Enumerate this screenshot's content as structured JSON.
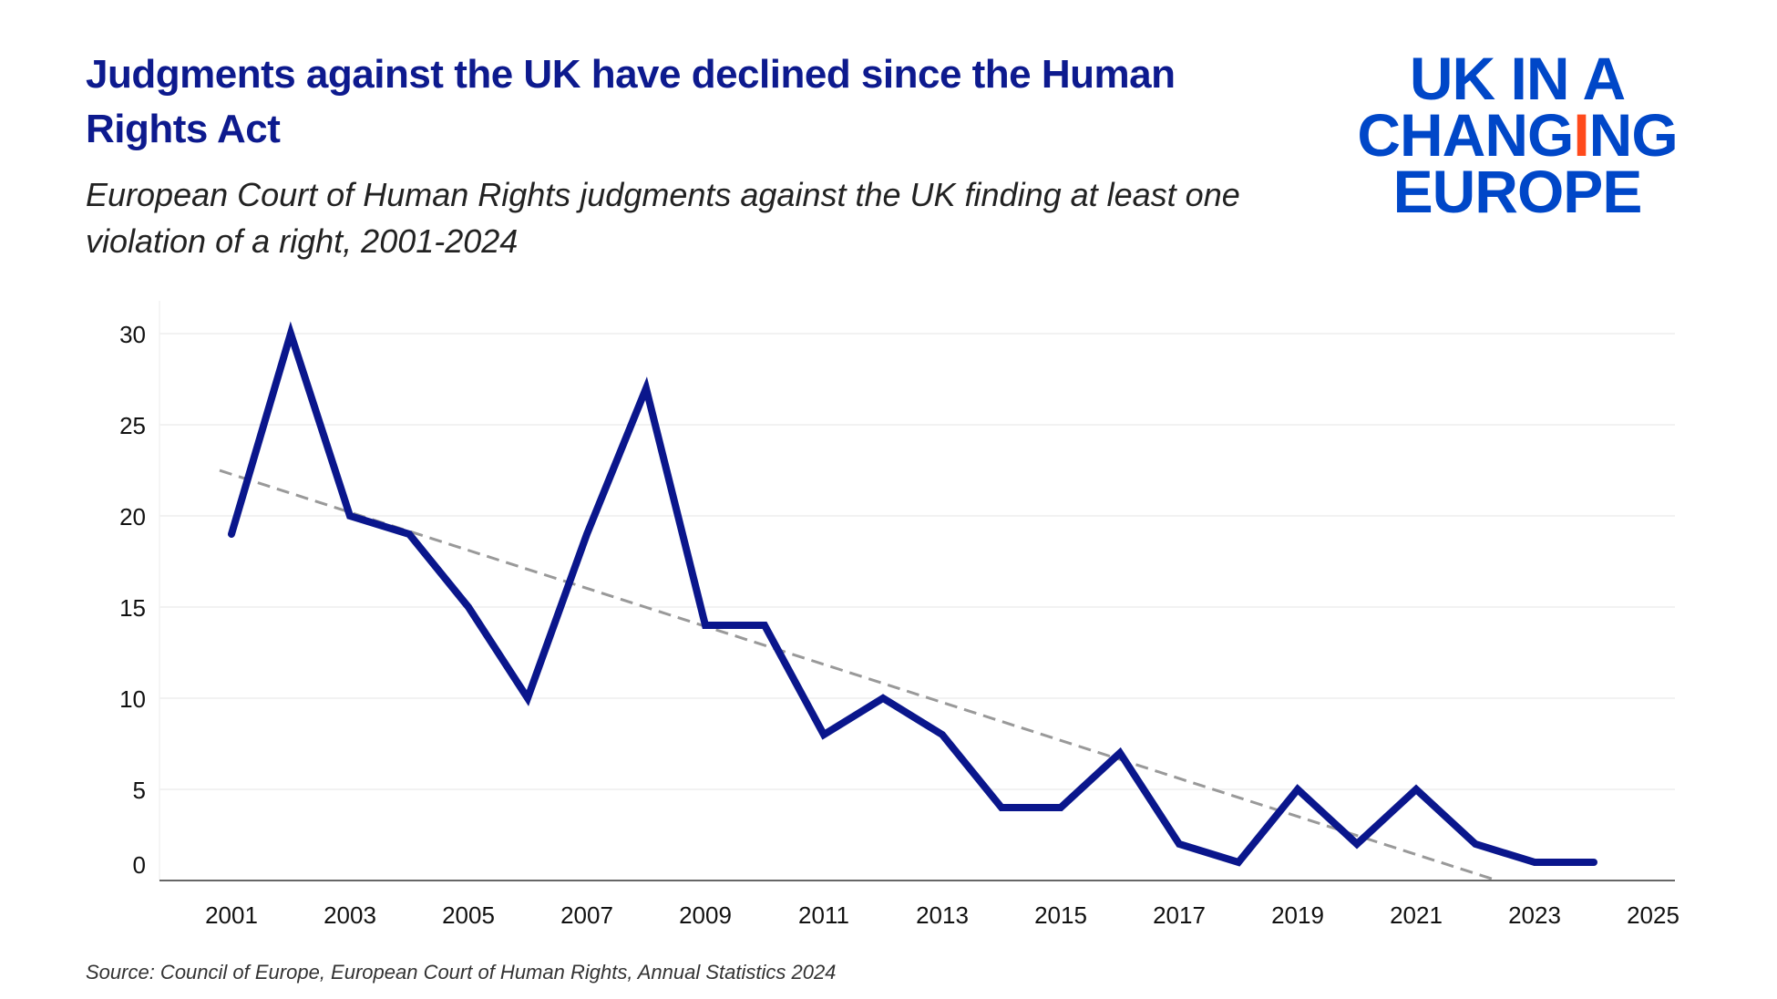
{
  "title": "Judgments against the UK have declined since the Human Rights Act",
  "subtitle": "European Court of Human Rights judgments against the UK finding at least one violation of a right, 2001-2024",
  "source": "Source: Council of Europe, European Court of Human Rights, Annual Statistics 2024",
  "logo": {
    "line1": "UK IN A",
    "line2a": "CHANG",
    "line2b": "I",
    "line2c": "NG",
    "line3": "EUROPE",
    "color": "#0047c8",
    "accent": "#ff4a1c"
  },
  "chart_data": {
    "type": "line",
    "title": "Judgments against the UK have declined since the Human Rights Act",
    "subtitle": "European Court of Human Rights judgments against the UK finding at least one violation of a right, 2001-2024",
    "x": [
      2001,
      2002,
      2003,
      2004,
      2005,
      2006,
      2007,
      2008,
      2009,
      2010,
      2011,
      2012,
      2013,
      2014,
      2015,
      2016,
      2017,
      2018,
      2019,
      2020,
      2021,
      2022,
      2023,
      2024
    ],
    "series": [
      {
        "values": [
          19,
          30,
          20,
          19,
          15,
          10,
          19,
          27,
          14,
          14,
          8,
          10,
          8,
          4,
          4,
          7,
          2,
          1,
          5,
          2,
          5,
          2,
          1,
          1
        ],
        "color": "#0a168c"
      }
    ],
    "trendline": {
      "style": "dashed",
      "color": "#999999",
      "type": "linear"
    },
    "xticks": [
      "2001",
      "2003",
      "2005",
      "2007",
      "2009",
      "2011",
      "2013",
      "2015",
      "2017",
      "2019",
      "2021",
      "2023",
      "2025"
    ],
    "yticks": [
      "0",
      "5",
      "10",
      "15",
      "20",
      "25",
      "30"
    ],
    "xlim": [
      2000.2,
      2025.8
    ],
    "ylim": [
      0,
      31
    ],
    "grid": "horizontal",
    "xlabel": "",
    "ylabel": ""
  }
}
